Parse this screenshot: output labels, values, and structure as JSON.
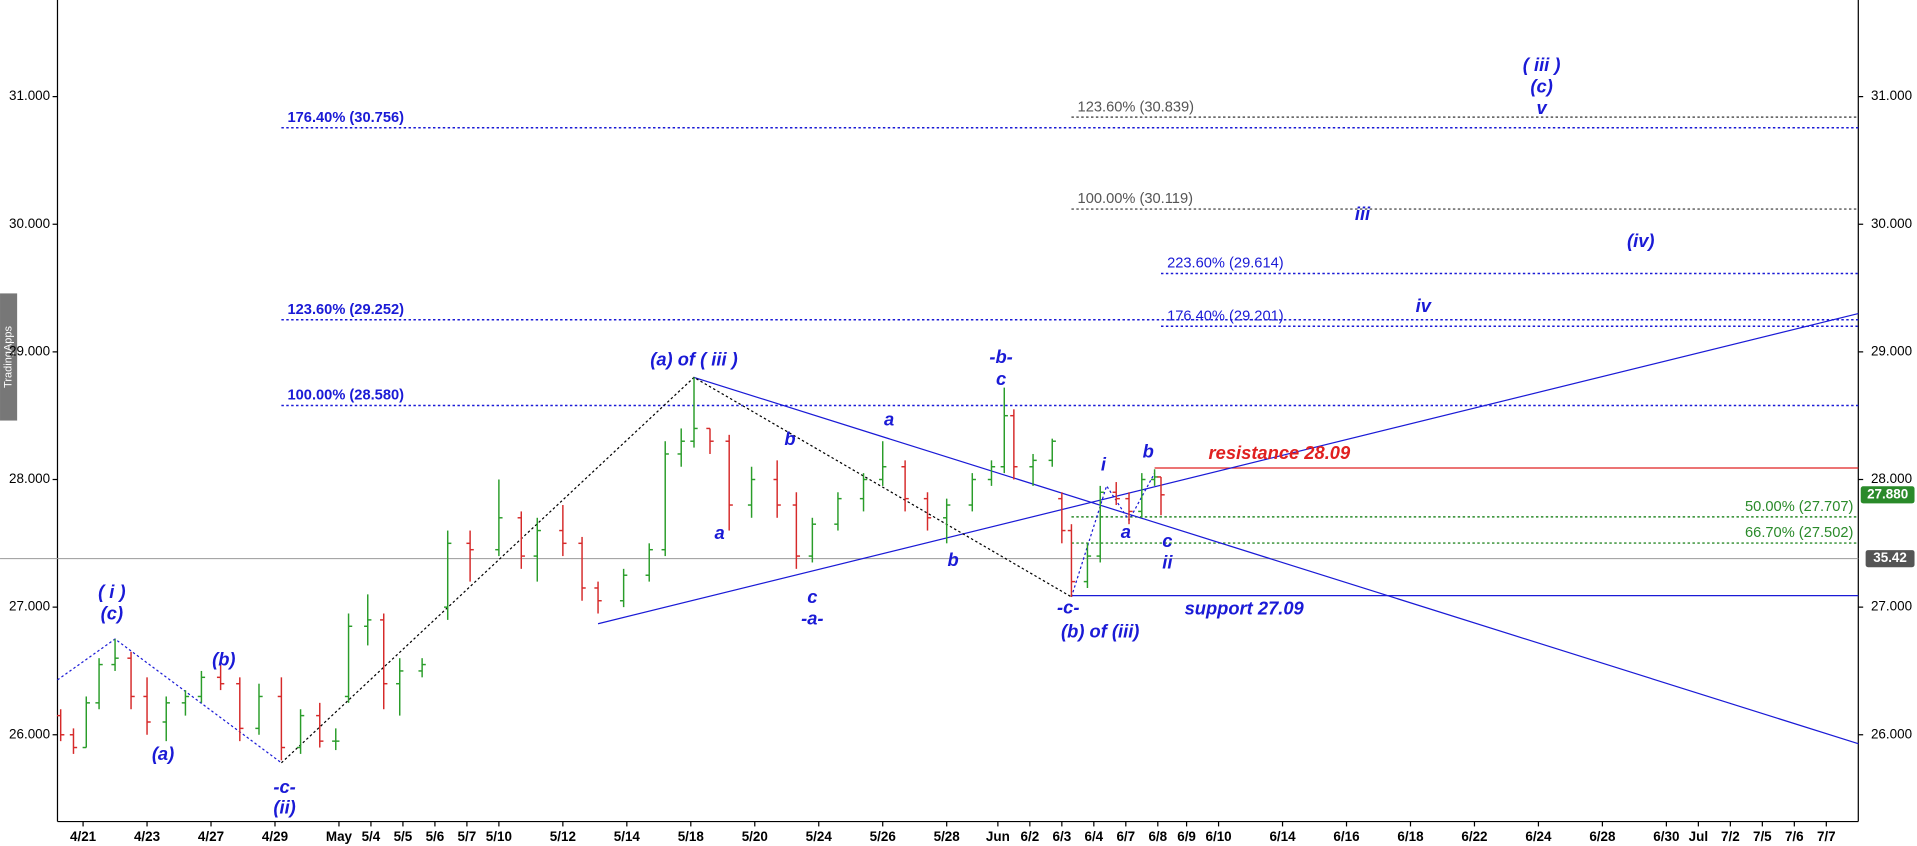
{
  "chart_data": {
    "type": "ohlc",
    "watermark": "TradingApps",
    "xlim": [
      -0.8,
      55.5
    ],
    "ylim": [
      25.32,
      31.757
    ],
    "up_color": "#2a9d2a",
    "down_color": "#d62a2a",
    "xticks": [
      {
        "value": 0,
        "label": "4/21"
      },
      {
        "value": 2,
        "label": "4/23"
      },
      {
        "value": 4,
        "label": "4/27"
      },
      {
        "value": 6,
        "label": "4/29"
      },
      {
        "value": 8,
        "label": "May"
      },
      {
        "value": 9,
        "label": "5/4"
      },
      {
        "value": 10,
        "label": "5/5"
      },
      {
        "value": 11,
        "label": "5/6"
      },
      {
        "value": 12,
        "label": "5/7"
      },
      {
        "value": 13,
        "label": "5/10"
      },
      {
        "value": 15,
        "label": "5/12"
      },
      {
        "value": 17,
        "label": "5/14"
      },
      {
        "value": 19,
        "label": "5/18"
      },
      {
        "value": 21,
        "label": "5/20"
      },
      {
        "value": 23,
        "label": "5/24"
      },
      {
        "value": 25,
        "label": "5/26"
      },
      {
        "value": 27,
        "label": "5/28"
      },
      {
        "value": 28.6,
        "label": "Jun"
      },
      {
        "value": 29.6,
        "label": "6/2"
      },
      {
        "value": 30.6,
        "label": "6/3"
      },
      {
        "value": 31.6,
        "label": "6/4"
      },
      {
        "value": 32.6,
        "label": "6/7"
      },
      {
        "value": 33.6,
        "label": "6/8"
      },
      {
        "value": 34.5,
        "label": "6/9"
      },
      {
        "value": 35.5,
        "label": "6/10"
      },
      {
        "value": 37.5,
        "label": "6/14"
      },
      {
        "value": 39.5,
        "label": "6/16"
      },
      {
        "value": 41.5,
        "label": "6/18"
      },
      {
        "value": 43.5,
        "label": "6/22"
      },
      {
        "value": 45.5,
        "label": "6/24"
      },
      {
        "value": 47.5,
        "label": "6/28"
      },
      {
        "value": 49.5,
        "label": "6/30"
      },
      {
        "value": 50.5,
        "label": "Jul"
      },
      {
        "value": 51.5,
        "label": "7/2"
      },
      {
        "value": 52.5,
        "label": "7/5"
      },
      {
        "value": 53.5,
        "label": "7/6"
      },
      {
        "value": 54.5,
        "label": "7/7"
      }
    ],
    "yticks": [
      {
        "value": 31,
        "label": "31.000"
      },
      {
        "value": 30,
        "label": "30.000"
      },
      {
        "value": 29,
        "label": "29.000"
      },
      {
        "value": 28,
        "label": "28.000"
      },
      {
        "value": 27,
        "label": "27.000"
      },
      {
        "value": 26,
        "label": "26.000"
      }
    ],
    "x": [
      -0.7,
      -0.3,
      0.1,
      0.5,
      1.0,
      1.5,
      2.0,
      2.6,
      3.2,
      3.7,
      4.3,
      4.9,
      5.5,
      6.2,
      6.8,
      7.4,
      7.9,
      8.3,
      8.9,
      9.4,
      9.9,
      10.6,
      11.4,
      12.1,
      13.0,
      13.7,
      14.2,
      15.0,
      15.6,
      16.1,
      16.9,
      17.7,
      18.2,
      18.7,
      19.1,
      19.6,
      20.2,
      20.9,
      21.7,
      22.3,
      22.8,
      23.6,
      24.4,
      25.0,
      25.7,
      26.4,
      27.0,
      27.8,
      28.4,
      28.8,
      29.1,
      29.7,
      30.3,
      30.6,
      30.9,
      31.4,
      31.8,
      32.3,
      32.7,
      33.1,
      33.5,
      33.7
    ],
    "open": [
      26.15,
      26.0,
      25.9,
      26.25,
      26.55,
      26.6,
      26.3,
      26.1,
      26.25,
      26.3,
      26.45,
      26.4,
      26.05,
      26.3,
      25.9,
      26.15,
      25.95,
      26.3,
      26.85,
      26.9,
      26.4,
      26.5,
      27.0,
      27.5,
      27.45,
      27.7,
      27.4,
      27.6,
      27.5,
      27.15,
      27.05,
      27.25,
      27.45,
      28.2,
      28.3,
      28.4,
      28.3,
      27.8,
      28.0,
      27.8,
      27.4,
      27.65,
      27.85,
      28.0,
      28.1,
      27.85,
      27.7,
      27.8,
      28.0,
      28.1,
      28.5,
      28.1,
      28.15,
      27.85,
      27.6,
      27.2,
      27.4,
      27.9,
      27.85,
      27.75,
      28.0,
      28.02
    ],
    "high": [
      26.2,
      26.05,
      26.3,
      26.6,
      26.75,
      26.65,
      26.45,
      26.3,
      26.35,
      26.5,
      26.55,
      26.45,
      26.4,
      26.45,
      26.2,
      26.25,
      26.05,
      26.95,
      27.1,
      26.95,
      26.6,
      26.6,
      27.6,
      27.6,
      28.0,
      27.75,
      27.7,
      27.8,
      27.55,
      27.2,
      27.3,
      27.5,
      28.3,
      28.4,
      28.8,
      28.4,
      28.35,
      28.1,
      28.15,
      27.9,
      27.7,
      27.9,
      28.05,
      28.3,
      28.15,
      27.9,
      27.85,
      28.05,
      28.15,
      28.72,
      28.55,
      28.2,
      28.32,
      27.9,
      27.65,
      27.5,
      27.95,
      27.98,
      27.9,
      28.05,
      28.08,
      28.02
    ],
    "low": [
      25.95,
      25.85,
      25.9,
      26.2,
      26.5,
      26.2,
      26.0,
      25.95,
      26.15,
      26.25,
      26.35,
      25.95,
      26.0,
      25.8,
      25.85,
      25.9,
      25.88,
      26.25,
      26.7,
      26.2,
      26.15,
      26.45,
      26.9,
      27.2,
      27.4,
      27.3,
      27.2,
      27.4,
      27.05,
      26.95,
      27.0,
      27.2,
      27.4,
      28.1,
      28.25,
      28.2,
      27.6,
      27.7,
      27.7,
      27.3,
      27.35,
      27.6,
      27.75,
      27.95,
      27.75,
      27.6,
      27.5,
      27.75,
      27.95,
      28.05,
      28.0,
      27.95,
      28.1,
      27.5,
      27.08,
      27.15,
      27.35,
      27.8,
      27.65,
      27.7,
      27.95,
      27.72
    ],
    "close": [
      26.0,
      25.9,
      26.25,
      26.55,
      26.6,
      26.3,
      26.1,
      26.25,
      26.3,
      26.45,
      26.4,
      26.05,
      26.3,
      25.9,
      26.15,
      25.95,
      25.95,
      26.85,
      26.9,
      26.4,
      26.5,
      26.55,
      27.5,
      27.45,
      27.7,
      27.4,
      27.6,
      27.5,
      27.15,
      27.05,
      27.25,
      27.45,
      28.2,
      28.3,
      28.4,
      28.3,
      27.8,
      28.0,
      27.8,
      27.4,
      27.65,
      27.85,
      28.0,
      28.1,
      27.85,
      27.7,
      27.8,
      28.0,
      28.1,
      28.5,
      28.1,
      28.15,
      28.3,
      27.6,
      27.2,
      27.4,
      27.9,
      27.85,
      27.75,
      28.0,
      28.02,
      27.88
    ],
    "levels": [
      {
        "label": "176.40% (30.756)",
        "value": 30.756,
        "x_start": 6.2,
        "color": "#1a1ad6",
        "style": "dotted",
        "label_side": "left"
      },
      {
        "label": "123.60% (29.252)",
        "value": 29.252,
        "x_start": 6.2,
        "color": "#1a1ad6",
        "style": "dotted",
        "label_side": "left"
      },
      {
        "label": "100.00% (28.580)",
        "value": 28.58,
        "x_start": 6.2,
        "color": "#1a1ad6",
        "style": "dotted",
        "label_side": "left"
      },
      {
        "label": "123.60% (30.839)",
        "value": 30.839,
        "x_start": 30.9,
        "color": "#555555",
        "style": "dotted",
        "label_side": "left"
      },
      {
        "label": "100.00% (30.119)",
        "value": 30.119,
        "x_start": 30.9,
        "color": "#555555",
        "style": "dotted",
        "label_side": "left"
      },
      {
        "label": "223.60% (29.614)",
        "value": 29.614,
        "x_start": 33.7,
        "color": "#1a1ad6",
        "style": "dotted",
        "label_side": "left"
      },
      {
        "label": "176.40% (29.201)",
        "value": 29.201,
        "x_start": 33.7,
        "color": "#1a1ad6",
        "style": "dotted",
        "label_side": "left"
      },
      {
        "label": "50.00% (27.707)",
        "value": 27.707,
        "x_start": 30.9,
        "color": "#2a8a2a",
        "style": "dotted",
        "label_side": "right"
      },
      {
        "label": "66.70% (27.502)",
        "value": 27.502,
        "x_start": 30.9,
        "color": "#2a8a2a",
        "style": "dotted",
        "label_side": "right"
      },
      {
        "value": 28.09,
        "x_start": 33.5,
        "color": "#e02020",
        "style": "solid"
      },
      {
        "value": 27.09,
        "x_start": 30.9,
        "color": "#1a1ad6",
        "style": "solid"
      }
    ],
    "trendlines": [
      {
        "x": [
          16.1,
          55.5
        ],
        "y": [
          26.87,
          29.3
        ],
        "color": "#1a1ad6",
        "style": "solid"
      },
      {
        "x": [
          19.1,
          55.5
        ],
        "y": [
          28.8,
          25.93
        ],
        "color": "#1a1ad6",
        "style": "solid"
      },
      {
        "x": [
          6.2,
          19.1,
          30.9
        ],
        "y": [
          25.78,
          28.8,
          27.08
        ],
        "color": "#000000",
        "style": "dotted"
      },
      {
        "x": [
          -0.8,
          1.0,
          6.2
        ],
        "y": [
          26.43,
          26.75,
          25.78
        ],
        "color": "#1a1ad6",
        "style": "dotted"
      },
      {
        "x": [
          30.9,
          32.0,
          32.7,
          33.5
        ],
        "y": [
          27.08,
          27.95,
          27.68,
          28.05
        ],
        "color": "#1a1ad6",
        "style": "dotted"
      }
    ],
    "annotations": [
      {
        "text": "( iii )",
        "x": 45.6,
        "y": 31.24
      },
      {
        "text": "(c)",
        "x": 45.6,
        "y": 31.07
      },
      {
        "text": "v",
        "x": 45.6,
        "y": 30.9
      },
      {
        "text": "iii",
        "x": 40.0,
        "y": 30.07
      },
      {
        "text": "(iv)",
        "x": 48.7,
        "y": 29.86
      },
      {
        "text": "iv",
        "x": 41.9,
        "y": 29.35
      },
      {
        "text": "(a) of ( iii )",
        "x": 19.1,
        "y": 28.93
      },
      {
        "text": "-b-",
        "x": 28.7,
        "y": 28.95
      },
      {
        "text": "c",
        "x": 28.7,
        "y": 28.78
      },
      {
        "text": "a",
        "x": 25.2,
        "y": 28.46
      },
      {
        "text": "b",
        "x": 22.1,
        "y": 28.31
      },
      {
        "text": "a",
        "x": 19.9,
        "y": 27.57
      },
      {
        "text": "b",
        "x": 27.2,
        "y": 27.36
      },
      {
        "text": "c",
        "x": 22.8,
        "y": 27.07
      },
      {
        "text": "-a-",
        "x": 22.8,
        "y": 26.9
      },
      {
        "text": "i",
        "x": 31.9,
        "y": 28.11
      },
      {
        "text": "b",
        "x": 33.3,
        "y": 28.21
      },
      {
        "text": "a",
        "x": 32.6,
        "y": 27.58
      },
      {
        "text": "c",
        "x": 33.9,
        "y": 27.51
      },
      {
        "text": "ii",
        "x": 33.9,
        "y": 27.34
      },
      {
        "text": "-c-",
        "x": 30.8,
        "y": 26.99
      },
      {
        "text": "(b) of (iii)",
        "x": 31.8,
        "y": 26.8
      },
      {
        "text": "( i )",
        "x": 0.9,
        "y": 27.11
      },
      {
        "text": "(c)",
        "x": 0.9,
        "y": 26.94
      },
      {
        "text": "(b)",
        "x": 4.4,
        "y": 26.58
      },
      {
        "text": "(a)",
        "x": 2.5,
        "y": 25.84
      },
      {
        "text": "-c-",
        "x": 6.3,
        "y": 25.58
      },
      {
        "text": "(ii)",
        "x": 6.3,
        "y": 25.42
      }
    ],
    "notes": [
      {
        "text": "resistance 28.09",
        "x": 37.4,
        "y": 28.2,
        "color": "#e02020"
      },
      {
        "text": "support 27.09",
        "x": 36.3,
        "y": 26.98,
        "color": "#1a1ad6"
      }
    ],
    "last_price": {
      "value": 27.88,
      "label": "27.880",
      "color": "#2a8a2a"
    },
    "crosshair": {
      "label": "35.42",
      "y": 27.38
    }
  }
}
